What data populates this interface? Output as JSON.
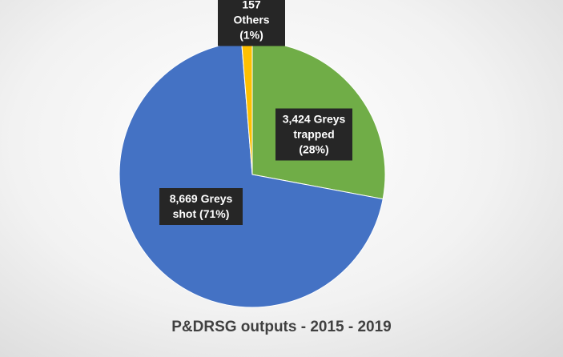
{
  "chart_data": {
    "type": "pie",
    "title": "P&DRSG outputs - 2015 - 2019",
    "categories": [
      "Greys trapped",
      "Greys shot",
      "Others"
    ],
    "values": [
      3424,
      8669,
      157
    ],
    "value_labels": [
      "3,424 Greys trapped (28%)",
      "8,669 Greys shot (71%)",
      "157 Others (1%)"
    ],
    "colors": [
      "#70ad47",
      "#4472c4",
      "#ffc000"
    ]
  }
}
